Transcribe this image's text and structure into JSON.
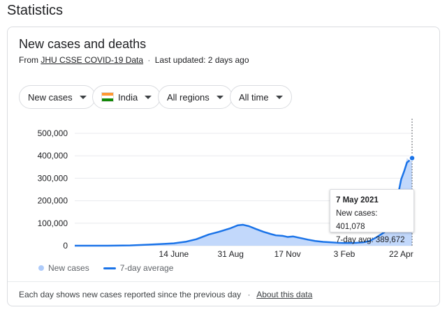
{
  "page": {
    "title": "Statistics"
  },
  "card": {
    "title": "New cases and deaths",
    "source_prefix": "From",
    "source_link": "JHU CSSE COVID-19 Data",
    "separator": "·",
    "updated": "Last updated: 2 days ago"
  },
  "filters": {
    "metric": "New cases",
    "country": "India",
    "region": "All regions",
    "time": "All time"
  },
  "colors": {
    "area": "#aecbfa",
    "line": "#1a73e8",
    "flag_saffron": "#ff9933",
    "flag_white": "#ffffff",
    "flag_green": "#138808"
  },
  "tooltip": {
    "date": "7 May 2021",
    "new_cases": "New cases: 401,078",
    "avg": "7-day avg: 389,672"
  },
  "legend": {
    "new_cases": "New cases",
    "avg": "7-day average"
  },
  "footer": {
    "note": "Each day shows new cases reported since the previous day",
    "separator": "·",
    "link": "About this data"
  },
  "chart_data": {
    "type": "area",
    "ylim": [
      0,
      500000
    ],
    "y_ticks": [
      {
        "value": 0,
        "label": "0"
      },
      {
        "value": 100000,
        "label": "100,000"
      },
      {
        "value": 200000,
        "label": "200,000"
      },
      {
        "value": 300000,
        "label": "300,000"
      },
      {
        "value": 400000,
        "label": "400,000"
      },
      {
        "value": 500000,
        "label": "500,000"
      }
    ],
    "x_ticks": [
      "14 June",
      "31 Aug",
      "17 Nov",
      "3 Feb",
      "22 Apr"
    ],
    "xlim": [
      "2020-01-30",
      "2021-05-07"
    ],
    "x_tick_dates": [
      "2020-06-14",
      "2020-08-31",
      "2020-11-17",
      "2021-02-03",
      "2021-04-22"
    ],
    "grid": true,
    "series": [
      {
        "name": "New cases",
        "x": [
          "2020-01-30",
          "2020-03-15",
          "2020-04-15",
          "2020-05-10",
          "2020-06-01",
          "2020-06-14",
          "2020-07-01",
          "2020-07-15",
          "2020-08-01",
          "2020-08-15",
          "2020-08-31",
          "2020-09-10",
          "2020-09-17",
          "2020-09-25",
          "2020-10-05",
          "2020-10-15",
          "2020-10-25",
          "2020-11-01",
          "2020-11-10",
          "2020-11-17",
          "2020-11-25",
          "2020-12-05",
          "2020-12-15",
          "2020-12-25",
          "2021-01-05",
          "2021-01-15",
          "2021-01-25",
          "2021-02-03",
          "2021-02-10",
          "2021-02-20",
          "2021-03-01",
          "2021-03-10",
          "2021-03-20",
          "2021-03-30",
          "2021-04-05",
          "2021-04-12",
          "2021-04-18",
          "2021-04-22",
          "2021-04-26",
          "2021-04-30",
          "2021-05-03",
          "2021-05-07"
        ],
        "values": [
          0,
          100,
          1500,
          5000,
          8500,
          11000,
          19000,
          30000,
          52000,
          63000,
          80000,
          93000,
          97000,
          88000,
          74000,
          63000,
          52000,
          46000,
          45000,
          38000,
          42000,
          35000,
          27000,
          21000,
          17000,
          15000,
          13000,
          12000,
          12000,
          13000,
          16000,
          22000,
          41000,
          65000,
          100000,
          150000,
          240000,
          300000,
          340000,
          390000,
          380000,
          401078
        ]
      },
      {
        "name": "7-day average",
        "x": [
          "2020-01-30",
          "2020-03-15",
          "2020-04-15",
          "2020-05-10",
          "2020-06-01",
          "2020-06-14",
          "2020-07-01",
          "2020-07-15",
          "2020-08-01",
          "2020-08-15",
          "2020-08-31",
          "2020-09-10",
          "2020-09-17",
          "2020-09-25",
          "2020-10-05",
          "2020-10-15",
          "2020-10-25",
          "2020-11-01",
          "2020-11-10",
          "2020-11-17",
          "2020-11-25",
          "2020-12-05",
          "2020-12-15",
          "2020-12-25",
          "2021-01-05",
          "2021-01-15",
          "2021-01-25",
          "2021-02-03",
          "2021-02-10",
          "2021-02-20",
          "2021-03-01",
          "2021-03-10",
          "2021-03-20",
          "2021-03-30",
          "2021-04-05",
          "2021-04-12",
          "2021-04-18",
          "2021-04-22",
          "2021-04-26",
          "2021-04-30",
          "2021-05-03",
          "2021-05-07"
        ],
        "values": [
          0,
          100,
          1200,
          4500,
          8000,
          10500,
          18000,
          29000,
          50000,
          62000,
          78000,
          91000,
          93000,
          87000,
          74000,
          62000,
          52000,
          46000,
          44000,
          39000,
          41000,
          34000,
          27000,
          21000,
          17000,
          15000,
          13000,
          12000,
          12000,
          13000,
          15000,
          21000,
          39000,
          60000,
          95000,
          145000,
          230000,
          295000,
          330000,
          370000,
          378000,
          389672
        ]
      }
    ]
  }
}
